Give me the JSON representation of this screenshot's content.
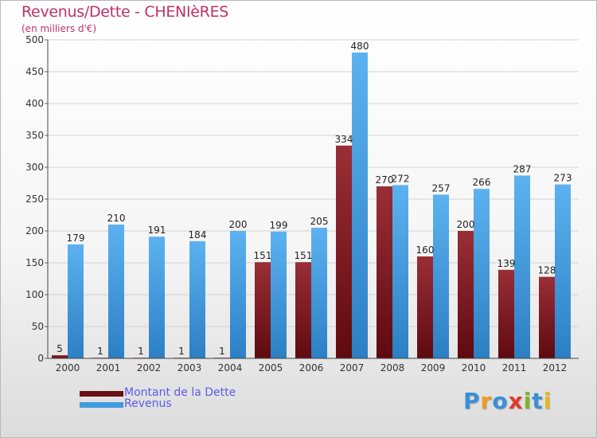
{
  "chart_data": {
    "type": "bar",
    "title": "Revenus/Dette - CHENIèRES",
    "subtitle": "(en milliers d'€)",
    "categories": [
      "2000",
      "2001",
      "2002",
      "2003",
      "2004",
      "2005",
      "2006",
      "2007",
      "2008",
      "2009",
      "2010",
      "2011",
      "2012"
    ],
    "series": [
      {
        "name": "Montant de la Dette",
        "color": "#7a1c24",
        "values": [
          5,
          1,
          1,
          1,
          1,
          151,
          151,
          334,
          270,
          160,
          200,
          139,
          128
        ],
        "labels": [
          "5",
          "1",
          "1",
          "1",
          "1",
          "151",
          "151",
          "334",
          "270",
          "160",
          "200",
          "139",
          "128"
        ]
      },
      {
        "name": "Revenus",
        "color": "#3f9bdf",
        "values": [
          179,
          210,
          191,
          184,
          200,
          199,
          205,
          480,
          272,
          257,
          266,
          287,
          273
        ],
        "labels": [
          "179",
          "210",
          "191",
          "184",
          "200",
          "199",
          "205",
          "480",
          "272",
          "257",
          "266",
          "287",
          "273"
        ]
      }
    ],
    "ylim": [
      0,
      500
    ],
    "yticks": [
      0,
      50,
      100,
      150,
      200,
      250,
      300,
      350,
      400,
      450,
      500
    ],
    "grid": true,
    "xlabel": "",
    "ylabel": ""
  },
  "legend": {
    "debt_label": "Montant de la Dette",
    "revenue_label": "Revenus"
  },
  "logo": {
    "text": "Proxiti",
    "letters": [
      {
        "char": "P",
        "color": "#3a8fd8"
      },
      {
        "char": "r",
        "color": "#f09a1e"
      },
      {
        "char": "o",
        "color": "#3a8fd8"
      },
      {
        "char": "x",
        "color": "#e23a2a"
      },
      {
        "char": "i",
        "color": "#7cb52a"
      },
      {
        "char": "t",
        "color": "#3a8fd8"
      },
      {
        "char": "i",
        "color": "#e8b81a"
      }
    ]
  }
}
